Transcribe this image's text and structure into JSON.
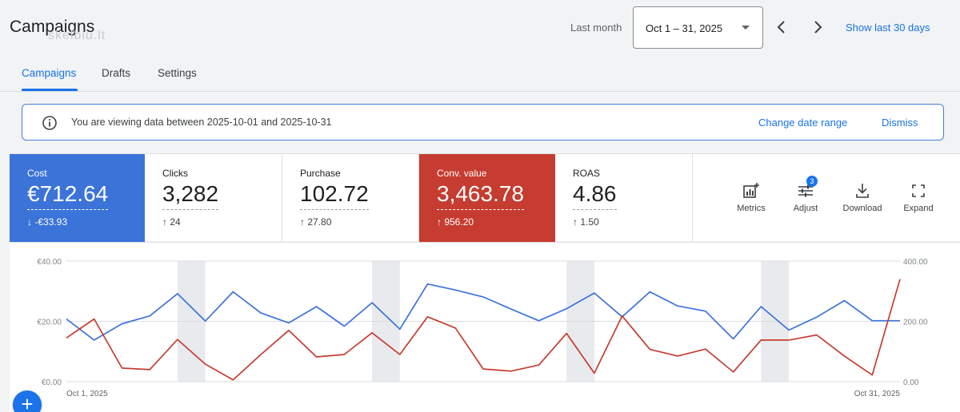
{
  "header": {
    "title": "Campaigns",
    "watermark": "skelbiu.lt",
    "period_label": "Last month",
    "date_range": "Oct 1 – 31, 2025",
    "show_last": "Show last 30 days"
  },
  "tabs": [
    {
      "label": "Campaigns",
      "active": true
    },
    {
      "label": "Drafts",
      "active": false
    },
    {
      "label": "Settings",
      "active": false
    }
  ],
  "banner": {
    "message": "You are viewing data between 2025-10-01 and 2025-10-31",
    "change_label": "Change date range",
    "dismiss_label": "Dismiss"
  },
  "metrics": [
    {
      "label": "Cost",
      "value": "€712.64",
      "delta": "↓ -€33.93",
      "color": "#3b73d9"
    },
    {
      "label": "Clicks",
      "value": "3,282",
      "delta": "↑ 24"
    },
    {
      "label": "Purchase",
      "value": "102.72",
      "delta": "↑ 27.80"
    },
    {
      "label": "Conv. value",
      "value": "3,463.78",
      "delta": "↑ 956.20",
      "color": "#c63c30"
    },
    {
      "label": "ROAS",
      "value": "4.86",
      "delta": "↑ 1.50"
    }
  ],
  "tools": {
    "metrics": "Metrics",
    "adjust": "Adjust",
    "adjust_badge": "3",
    "download": "Download",
    "expand": "Expand"
  },
  "chart_data": {
    "type": "line",
    "x_start_label": "Oct 1, 2025",
    "x_end_label": "Oct 31, 2025",
    "days": 31,
    "left_axis": {
      "ticks": [
        "€0.00",
        "€20.00",
        "€40.00"
      ],
      "range": [
        0,
        40
      ]
    },
    "right_axis": {
      "ticks": [
        "0.00",
        "200.00",
        "400.00"
      ],
      "range": [
        0,
        400
      ]
    },
    "weekend_bands": [
      [
        4,
        5
      ],
      [
        11,
        12
      ],
      [
        18,
        19
      ],
      [
        25,
        26
      ]
    ],
    "series": [
      {
        "name": "Cost",
        "axis": "left",
        "color": "#3b73d9",
        "values": [
          20.8,
          13.8,
          19.2,
          21.8,
          29.2,
          20.1,
          29.8,
          22.8,
          19.5,
          24.9,
          18.4,
          26.2,
          17.4,
          32.4,
          30.4,
          28.1,
          24.1,
          20.2,
          24.2,
          29.4,
          21.5,
          29.8,
          25.1,
          23.4,
          14.2,
          24.9,
          17.1,
          21.4,
          26.9,
          20.2,
          20.2
        ]
      },
      {
        "name": "Conv. value",
        "axis": "right",
        "color": "#c63c30",
        "values": [
          145,
          208,
          45,
          40,
          140,
          58,
          6,
          90,
          170,
          82,
          90,
          162,
          90,
          215,
          178,
          42,
          35,
          55,
          160,
          28,
          218,
          107,
          85,
          108,
          32,
          138,
          138,
          155,
          85,
          22,
          340
        ]
      }
    ]
  },
  "fab": "+"
}
